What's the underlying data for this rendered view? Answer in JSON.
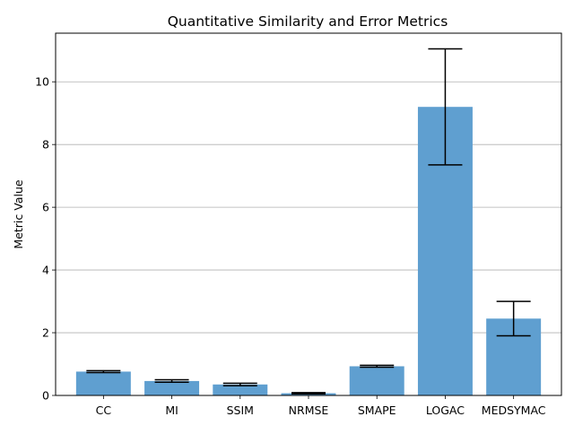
{
  "chart_data": {
    "type": "bar",
    "title": "Quantitative Similarity and Error Metrics",
    "xlabel": "",
    "ylabel": "Metric Value",
    "categories": [
      "CC",
      "MI",
      "SSIM",
      "NRMSE",
      "SMAPE",
      "LOGAC",
      "MEDSYMAC"
    ],
    "values": [
      0.76,
      0.46,
      0.35,
      0.07,
      0.93,
      9.2,
      2.45
    ],
    "errors": [
      0.03,
      0.04,
      0.04,
      0.02,
      0.03,
      1.85,
      0.55
    ],
    "ylim": [
      0,
      11.55
    ],
    "yticks": [
      0,
      2,
      4,
      6,
      8,
      10
    ],
    "ytick_labels": [
      "0",
      "2",
      "4",
      "6",
      "8",
      "10"
    ],
    "grid": "y",
    "bar_color": "#5f9fd0",
    "error_color": "#000000"
  }
}
